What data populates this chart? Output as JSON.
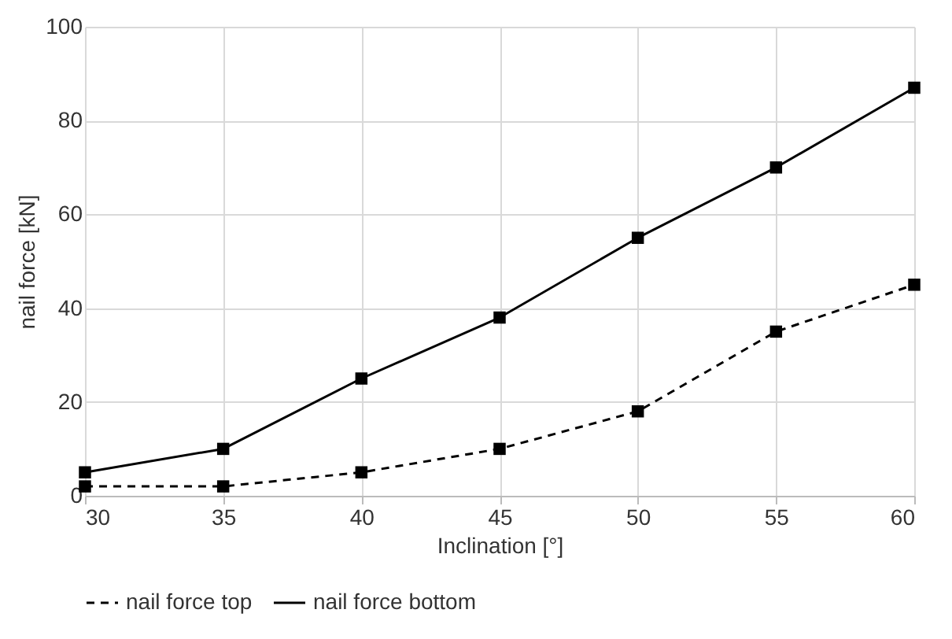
{
  "chart_data": {
    "type": "line",
    "xlabel": "Inclination [°]",
    "ylabel": "nail force [kN]",
    "x": [
      30,
      35,
      40,
      45,
      50,
      55,
      60
    ],
    "series": [
      {
        "name": "nail force top",
        "color": "#000000",
        "line_style": "dashed",
        "values": [
          2,
          2,
          5,
          10,
          18,
          35,
          45
        ]
      },
      {
        "name": "nail force bottom",
        "color": "#000000",
        "line_style": "solid",
        "values": [
          5,
          10,
          25,
          38,
          55,
          70,
          87
        ]
      }
    ],
    "xlim": [
      30,
      60
    ],
    "xticks": [
      30,
      35,
      40,
      45,
      50,
      55,
      60
    ],
    "ylim": [
      0,
      100
    ],
    "yticks": [
      0,
      20,
      40,
      60,
      80,
      100
    ],
    "grid": true,
    "legend": "bottom",
    "marker": "square"
  }
}
